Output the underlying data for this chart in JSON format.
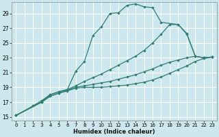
{
  "xlabel": "Humidex (Indice chaleur)",
  "bg_color": "#cce8ee",
  "grid_color": "#ffffff",
  "line_color": "#2e7d6e",
  "xlim": [
    -0.5,
    23.5
  ],
  "ylim": [
    14.5,
    30.5
  ],
  "yticks": [
    15,
    17,
    19,
    21,
    23,
    25,
    27,
    29
  ],
  "xticks": [
    0,
    1,
    2,
    3,
    4,
    5,
    6,
    7,
    8,
    9,
    10,
    11,
    12,
    13,
    14,
    15,
    16,
    17,
    18,
    19,
    20,
    21,
    22,
    23
  ],
  "lines": [
    {
      "x": [
        0,
        2,
        3,
        4,
        5,
        6,
        7,
        8,
        9,
        10,
        11,
        12,
        13,
        14,
        15,
        16,
        17,
        19,
        20,
        21,
        22,
        23
      ],
      "y": [
        15.2,
        16.5,
        17.2,
        18.0,
        18.4,
        18.7,
        21.2,
        22.5,
        26.0,
        27.2,
        29.0,
        29.1,
        30.1,
        30.3,
        29.9,
        29.8,
        27.8,
        27.5,
        26.3,
        23.2,
        23.0,
        23.1
      ]
    },
    {
      "x": [
        0,
        3,
        4,
        5,
        6,
        7,
        8,
        9,
        10,
        11,
        12,
        13,
        14,
        15,
        16,
        17,
        18,
        19,
        20,
        21,
        22,
        23
      ],
      "y": [
        15.2,
        17.0,
        18.0,
        18.4,
        18.7,
        19.2,
        19.8,
        20.3,
        20.8,
        21.4,
        22.0,
        22.6,
        23.2,
        24.0,
        25.0,
        26.2,
        27.5,
        27.5,
        26.2,
        23.2,
        23.0,
        23.1
      ]
    },
    {
      "x": [
        0,
        3,
        4,
        5,
        6,
        7,
        8,
        9,
        10,
        11,
        12,
        13,
        14,
        15,
        16,
        17,
        18,
        19,
        20,
        21,
        22,
        23
      ],
      "y": [
        15.2,
        17.0,
        17.8,
        18.2,
        18.6,
        19.0,
        19.2,
        19.4,
        19.6,
        19.8,
        20.1,
        20.4,
        20.7,
        21.1,
        21.5,
        22.0,
        22.4,
        22.7,
        23.0,
        23.2,
        23.0,
        23.1
      ]
    },
    {
      "x": [
        0,
        3,
        4,
        5,
        6,
        7,
        8,
        9,
        10,
        11,
        12,
        13,
        14,
        15,
        16,
        17,
        18,
        19,
        20,
        21,
        22,
        23
      ],
      "y": [
        15.2,
        17.0,
        17.8,
        18.2,
        18.5,
        18.9,
        19.0,
        19.0,
        19.0,
        19.1,
        19.2,
        19.3,
        19.5,
        19.7,
        20.0,
        20.4,
        20.9,
        21.4,
        21.9,
        22.5,
        22.9,
        23.1
      ]
    }
  ]
}
